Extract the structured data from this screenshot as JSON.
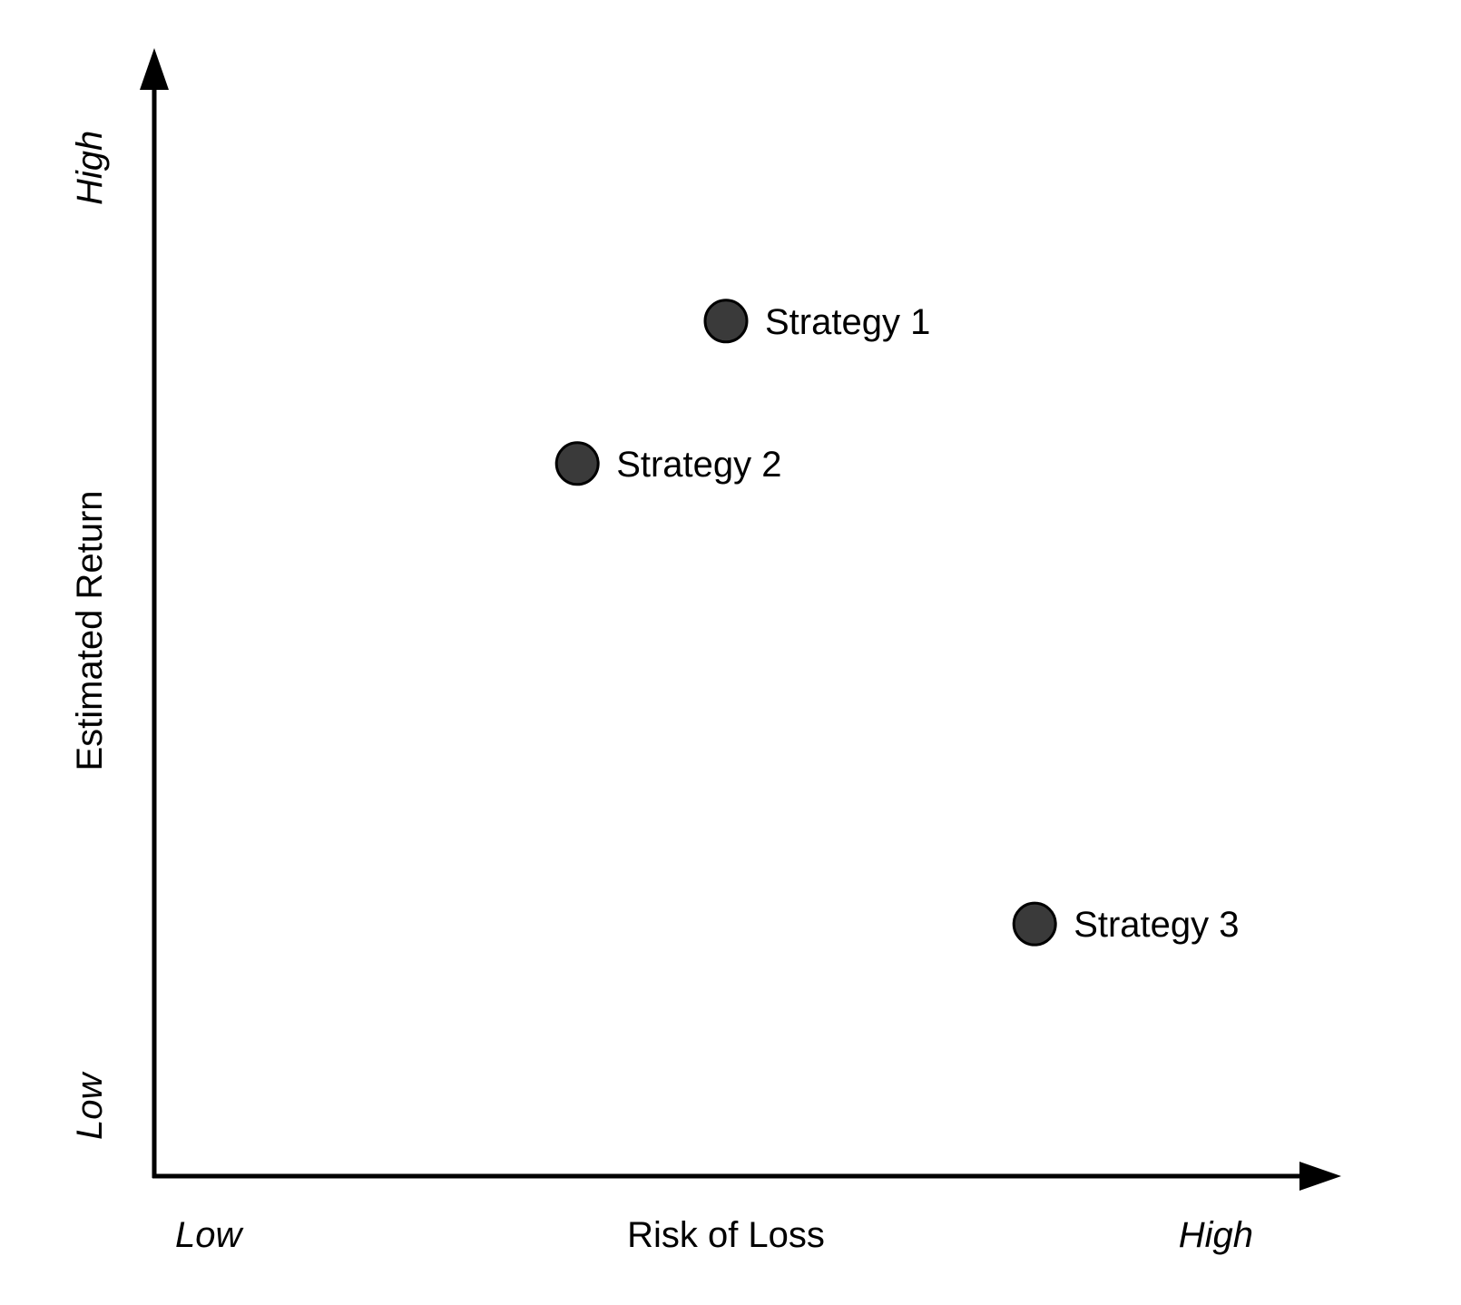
{
  "chart_data": {
    "type": "scatter",
    "xlabel": "Risk of Loss",
    "ylabel": "Estimated Return",
    "x_ticks": [
      "Low",
      "High"
    ],
    "y_ticks": [
      "Low",
      "High"
    ],
    "xlim": [
      0,
      10
    ],
    "ylim": [
      0,
      10
    ],
    "grid": false,
    "colors": {
      "axis": "#000000",
      "marker_fill": "#3a3a3a",
      "marker_stroke": "#000000"
    },
    "points": [
      {
        "label": "Strategy 1",
        "x": 5.0,
        "y": 7.8
      },
      {
        "label": "Strategy 2",
        "x": 3.7,
        "y": 6.5
      },
      {
        "label": "Strategy 3",
        "x": 7.7,
        "y": 2.3
      }
    ]
  }
}
